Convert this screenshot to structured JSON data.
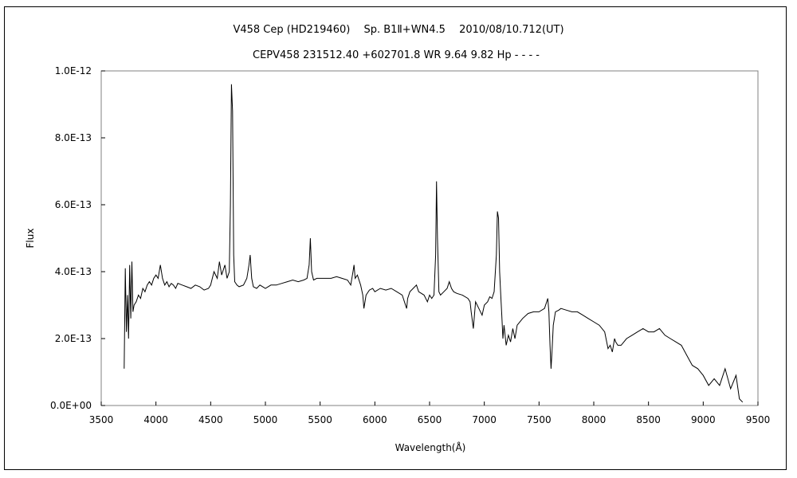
{
  "chart_data": {
    "type": "line",
    "title": "V458 Cep (HD219460)　 Sp. B1Ⅱ+WN4.5　 2010/08/10.712(UT)",
    "subtitle": "CEPV458 231512.40 +602701.8 WR 9.64 9.82 Hp - - - -",
    "xlabel": "Wavelength(Å)",
    "ylabel": "Flux",
    "xlim": [
      3500,
      9500
    ],
    "ylim": [
      0,
      1e-12
    ],
    "xticks": [
      3500,
      4000,
      4500,
      5000,
      5500,
      6000,
      6500,
      7000,
      7500,
      8000,
      8500,
      9000,
      9500
    ],
    "xtick_labels": [
      "3500",
      "4000",
      "4500",
      "5000",
      "5500",
      "6000",
      "6500",
      "7000",
      "7500",
      "8000",
      "8500",
      "9000",
      "9500"
    ],
    "yticks": [
      0,
      2e-13,
      4e-13,
      6e-13,
      8e-13,
      1e-12
    ],
    "ytick_labels": [
      "0.0E+00",
      "2.0E-13",
      "4.0E-13",
      "6.0E-13",
      "8.0E-13",
      "1.0E-12"
    ],
    "grid": false,
    "line_color": "#000000",
    "series": [
      {
        "x": [
          3710,
          3720,
          3730,
          3740,
          3750,
          3760,
          3770,
          3780,
          3790,
          3800,
          3820,
          3840,
          3860,
          3880,
          3900,
          3920,
          3940,
          3960,
          3980,
          4000,
          4020,
          4040,
          4060,
          4080,
          4100,
          4120,
          4140,
          4160,
          4180,
          4200,
          4240,
          4280,
          4320,
          4360,
          4400,
          4440,
          4480,
          4500,
          4530,
          4560,
          4580,
          4600,
          4630,
          4650,
          4670,
          4680,
          4690,
          4700,
          4710,
          4720,
          4740,
          4760,
          4800,
          4830,
          4850,
          4861,
          4875,
          4890,
          4920,
          4950,
          5000,
          5050,
          5100,
          5150,
          5200,
          5250,
          5300,
          5350,
          5380,
          5400,
          5411,
          5422,
          5440,
          5470,
          5500,
          5550,
          5600,
          5650,
          5700,
          5750,
          5780,
          5800,
          5810,
          5820,
          5840,
          5870,
          5890,
          5900,
          5920,
          5950,
          5980,
          6000,
          6050,
          6100,
          6150,
          6200,
          6250,
          6280,
          6290,
          6300,
          6320,
          6350,
          6380,
          6400,
          6450,
          6480,
          6500,
          6520,
          6540,
          6555,
          6563,
          6572,
          6585,
          6600,
          6630,
          6660,
          6680,
          6700,
          6720,
          6750,
          6800,
          6850,
          6870,
          6880,
          6900,
          6920,
          6950,
          6980,
          7000,
          7030,
          7050,
          7070,
          7090,
          7110,
          7120,
          7130,
          7140,
          7150,
          7160,
          7170,
          7180,
          7200,
          7220,
          7240,
          7260,
          7280,
          7300,
          7350,
          7400,
          7450,
          7500,
          7550,
          7580,
          7590,
          7600,
          7610,
          7620,
          7630,
          7650,
          7680,
          7700,
          7750,
          7800,
          7850,
          7900,
          7950,
          8000,
          8050,
          8100,
          8130,
          8150,
          8170,
          8190,
          8200,
          8220,
          8250,
          8300,
          8350,
          8400,
          8450,
          8500,
          8550,
          8600,
          8650,
          8700,
          8750,
          8800,
          8850,
          8900,
          8950,
          9000,
          9050,
          9100,
          9150,
          9200,
          9250,
          9300,
          9330,
          9360
        ],
        "y": [
          1.1e-13,
          4.1e-13,
          2.2e-13,
          3.3e-13,
          2e-13,
          4.2e-13,
          2.6e-13,
          4.3e-13,
          2.8e-13,
          3e-13,
          3.1e-13,
          3.3e-13,
          3.2e-13,
          3.5e-13,
          3.4e-13,
          3.6e-13,
          3.7e-13,
          3.6e-13,
          3.8e-13,
          3.9e-13,
          3.8e-13,
          4.2e-13,
          3.8e-13,
          3.6e-13,
          3.7e-13,
          3.55e-13,
          3.65e-13,
          3.6e-13,
          3.5e-13,
          3.65e-13,
          3.6e-13,
          3.55e-13,
          3.5e-13,
          3.6e-13,
          3.55e-13,
          3.45e-13,
          3.5e-13,
          3.6e-13,
          4e-13,
          3.8e-13,
          4.3e-13,
          3.9e-13,
          4.2e-13,
          3.8e-13,
          4e-13,
          6e-13,
          9.6e-13,
          8.8e-13,
          4.5e-13,
          3.7e-13,
          3.6e-13,
          3.55e-13,
          3.6e-13,
          3.8e-13,
          4.2e-13,
          4.5e-13,
          3.8e-13,
          3.55e-13,
          3.5e-13,
          3.6e-13,
          3.5e-13,
          3.6e-13,
          3.6e-13,
          3.65e-13,
          3.7e-13,
          3.75e-13,
          3.7e-13,
          3.75e-13,
          3.8e-13,
          4.2e-13,
          5e-13,
          4e-13,
          3.75e-13,
          3.8e-13,
          3.8e-13,
          3.8e-13,
          3.8e-13,
          3.85e-13,
          3.8e-13,
          3.75e-13,
          3.6e-13,
          4e-13,
          4.2e-13,
          3.8e-13,
          3.9e-13,
          3.6e-13,
          3.3e-13,
          2.9e-13,
          3.3e-13,
          3.45e-13,
          3.5e-13,
          3.4e-13,
          3.5e-13,
          3.45e-13,
          3.5e-13,
          3.4e-13,
          3.3e-13,
          3e-13,
          2.9e-13,
          3.2e-13,
          3.4e-13,
          3.5e-13,
          3.6e-13,
          3.4e-13,
          3.3e-13,
          3.1e-13,
          3.3e-13,
          3.2e-13,
          3.3e-13,
          4.5e-13,
          6.7e-13,
          5e-13,
          3.4e-13,
          3.3e-13,
          3.4e-13,
          3.5e-13,
          3.7e-13,
          3.5e-13,
          3.4e-13,
          3.35e-13,
          3.3e-13,
          3.2e-13,
          3.1e-13,
          2.8e-13,
          2.3e-13,
          3.1e-13,
          2.9e-13,
          2.7e-13,
          3e-13,
          3.1e-13,
          3.25e-13,
          3.2e-13,
          3.4e-13,
          4.5e-13,
          5.8e-13,
          5.6e-13,
          4e-13,
          3.3e-13,
          2.7e-13,
          2e-13,
          2.4e-13,
          1.8e-13,
          2.1e-13,
          1.9e-13,
          2.3e-13,
          2e-13,
          2.4e-13,
          2.6e-13,
          2.75e-13,
          2.8e-13,
          2.8e-13,
          2.9e-13,
          3.2e-13,
          2.8e-13,
          1.8e-13,
          1.1e-13,
          1.7e-13,
          2.4e-13,
          2.8e-13,
          2.85e-13,
          2.9e-13,
          2.85e-13,
          2.8e-13,
          2.8e-13,
          2.7e-13,
          2.6e-13,
          2.5e-13,
          2.4e-13,
          2.2e-13,
          1.7e-13,
          1.8e-13,
          1.6e-13,
          2e-13,
          1.9e-13,
          1.8e-13,
          1.8e-13,
          2e-13,
          2.1e-13,
          2.2e-13,
          2.3e-13,
          2.2e-13,
          2.2e-13,
          2.3e-13,
          2.1e-13,
          2e-13,
          1.9e-13,
          1.8e-13,
          1.5e-13,
          1.2e-13,
          1.1e-13,
          9e-14,
          6e-14,
          8e-14,
          6e-14,
          1.1e-13,
          5e-14,
          9e-14,
          2e-14,
          1e-14
        ]
      }
    ]
  }
}
